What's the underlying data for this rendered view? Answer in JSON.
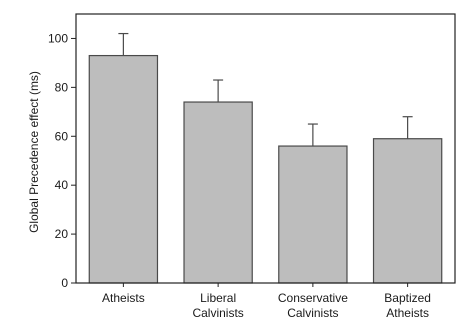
{
  "chart_data": {
    "type": "bar",
    "title": "",
    "xlabel": "",
    "ylabel": "Global Precedence effect (ms)",
    "ylim": [
      0,
      110
    ],
    "yticks": [
      0,
      20,
      40,
      60,
      80,
      100
    ],
    "ytick_labels": [
      "0",
      "20",
      "40",
      "60",
      "80",
      "100"
    ],
    "grid": false,
    "legend": "none",
    "categories": [
      "Atheists",
      "Liberal Calvinists",
      "Conservative Calvinists",
      "Baptized Atheists"
    ],
    "category_lines": [
      [
        "Atheists"
      ],
      [
        "Liberal",
        "Calvinists"
      ],
      [
        "Conservative",
        "Calvinists"
      ],
      [
        "Baptized",
        "Atheists"
      ]
    ],
    "values": [
      93,
      74,
      56,
      59
    ],
    "errors": [
      9,
      9,
      9,
      9
    ],
    "colors": {
      "bar_fill": "#bdbdbd",
      "bar_stroke": "#4a4a4a",
      "axis": "#222222"
    }
  }
}
